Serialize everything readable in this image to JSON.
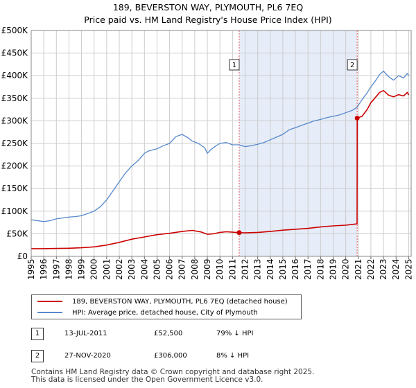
{
  "title_line1": "189, BEVERSTON WAY, PLYMOUTH, PL6 7EQ",
  "title_line2": "Price paid vs. HM Land Registry's House Price Index (HPI)",
  "colors": {
    "price_paid": "#cc0000",
    "hpi": "#5588cc",
    "shade": "#dde6f5",
    "grid": "#cccccc"
  },
  "legend": {
    "price_paid": "189, BEVERSTON WAY, PLYMOUTH, PL6 7EQ (detached house)",
    "hpi": "HPI: Average price, detached house, City of Plymouth"
  },
  "transactions": [
    {
      "label": "1",
      "date": "13-JUL-2011",
      "price": "£52,500",
      "hpi_diff": "79% ↓ HPI"
    },
    {
      "label": "2",
      "date": "27-NOV-2020",
      "price": "£306,000",
      "hpi_diff": "8% ↓ HPI"
    }
  ],
  "footer_line1": "Contains HM Land Registry data © Crown copyright and database right 2025.",
  "footer_line2": "This data is licensed under the Open Government Licence v3.0.",
  "chart_data": {
    "type": "line",
    "title": "189, BEVERSTON WAY, PLYMOUTH, PL6 7EQ — Price paid vs. HM Land Registry's House Price Index (HPI)",
    "xlabel": "",
    "ylabel": "",
    "xlim": [
      1995,
      2025.2
    ],
    "ylim": [
      0,
      500000
    ],
    "x_ticks": [
      "1995",
      "1996",
      "1997",
      "1998",
      "1999",
      "2000",
      "2001",
      "2002",
      "2003",
      "2004",
      "2005",
      "2006",
      "2007",
      "2008",
      "2009",
      "2010",
      "2011",
      "2012",
      "2013",
      "2014",
      "2015",
      "2016",
      "2017",
      "2018",
      "2019",
      "2020",
      "2021",
      "2022",
      "2023",
      "2024",
      "2025"
    ],
    "y_ticks": [
      {
        "value": 0,
        "label": "£0"
      },
      {
        "value": 50000,
        "label": "£50K"
      },
      {
        "value": 100000,
        "label": "£100K"
      },
      {
        "value": 150000,
        "label": "£150K"
      },
      {
        "value": 200000,
        "label": "£200K"
      },
      {
        "value": 250000,
        "label": "£250K"
      },
      {
        "value": 300000,
        "label": "£300K"
      },
      {
        "value": 350000,
        "label": "£350K"
      },
      {
        "value": 400000,
        "label": "£400K"
      },
      {
        "value": 450000,
        "label": "£450K"
      },
      {
        "value": 500000,
        "label": "£500K"
      }
    ],
    "grid": true,
    "shaded_period": [
      2011.53,
      2020.91
    ],
    "series": [
      {
        "name": "HPI: Average price, detached house, City of Plymouth",
        "color": "#5588cc",
        "x": [
          1995.0,
          1995.5,
          1996.0,
          1996.5,
          1997.0,
          1997.5,
          1998.0,
          1998.5,
          1999.0,
          1999.5,
          2000.0,
          2000.5,
          2001.0,
          2001.5,
          2002.0,
          2002.5,
          2003.0,
          2003.5,
          2004.0,
          2004.3,
          2004.7,
          2005.0,
          2005.5,
          2006.0,
          2006.5,
          2007.0,
          2007.5,
          2007.8,
          2008.3,
          2008.8,
          2009.0,
          2009.3,
          2009.7,
          2010.0,
          2010.5,
          2011.0,
          2011.5,
          2012.0,
          2012.5,
          2013.0,
          2013.5,
          2014.0,
          2014.5,
          2015.0,
          2015.5,
          2016.0,
          2016.5,
          2017.0,
          2017.5,
          2018.0,
          2018.5,
          2019.0,
          2019.5,
          2020.0,
          2020.5,
          2020.9,
          2021.3,
          2021.7,
          2022.0,
          2022.4,
          2022.7,
          2023.0,
          2023.4,
          2023.8,
          2024.2,
          2024.6,
          2024.9,
          2025.0
        ],
        "y": [
          81000,
          79000,
          77000,
          79000,
          83000,
          85000,
          87000,
          88000,
          90000,
          95000,
          100000,
          110000,
          125000,
          145000,
          165000,
          185000,
          200000,
          212000,
          228000,
          233000,
          236000,
          238000,
          245000,
          250000,
          265000,
          270000,
          262000,
          255000,
          250000,
          240000,
          228000,
          237000,
          245000,
          250000,
          252000,
          247000,
          247000,
          243000,
          245000,
          248000,
          252000,
          258000,
          264000,
          270000,
          280000,
          285000,
          290000,
          295000,
          300000,
          303000,
          307000,
          310000,
          313000,
          318000,
          323000,
          330000,
          347000,
          362000,
          375000,
          390000,
          403000,
          410000,
          398000,
          390000,
          400000,
          395000,
          405000,
          400000
        ]
      },
      {
        "name": "189, BEVERSTON WAY, PLYMOUTH, PL6 7EQ (detached house)",
        "color": "#cc0000",
        "x": [
          1995.0,
          1996.0,
          1997.0,
          1998.0,
          1999.0,
          2000.0,
          2001.0,
          2002.0,
          2003.0,
          2004.0,
          2005.0,
          2006.0,
          2007.0,
          2007.8,
          2008.5,
          2009.0,
          2009.5,
          2010.0,
          2010.5,
          2011.0,
          2011.53,
          2012.0,
          2013.0,
          2014.0,
          2015.0,
          2016.0,
          2017.0,
          2018.0,
          2019.0,
          2020.0,
          2020.9,
          2020.91,
          2021.3,
          2021.7,
          2022.0,
          2022.4,
          2022.7,
          2023.0,
          2023.4,
          2023.8,
          2024.2,
          2024.6,
          2024.9,
          2025.0
        ],
        "y": [
          17000,
          17000,
          17500,
          18000,
          19000,
          21000,
          25000,
          31000,
          38000,
          43000,
          48000,
          51000,
          55000,
          57500,
          54000,
          49000,
          50000,
          53000,
          54500,
          53500,
          52500,
          52000,
          53000,
          55000,
          58000,
          60000,
          62000,
          65000,
          67500,
          69000,
          72000,
          306000,
          310000,
          325000,
          340000,
          353000,
          363000,
          367000,
          357000,
          353000,
          358000,
          355000,
          363000,
          357000
        ]
      }
    ],
    "markers": [
      {
        "label": "1",
        "x": 2011.53,
        "y": 52500
      },
      {
        "label": "2",
        "x": 2020.91,
        "y": 306000
      }
    ]
  }
}
